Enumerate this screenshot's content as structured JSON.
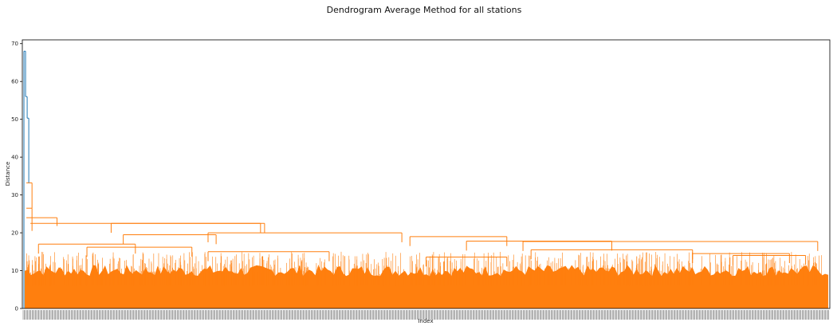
{
  "chart_data": {
    "type": "dendrogram",
    "title": "Dendrogram Average Method for all stations",
    "xlabel": "Index",
    "ylabel": "Distance",
    "ylim": [
      0,
      71
    ],
    "yticks": [
      0,
      10,
      20,
      30,
      40,
      50,
      60,
      70
    ],
    "grid": false,
    "colors": {
      "upper_links": "#1f77b4",
      "clusters": "#ff7f0e"
    },
    "top_merges": [
      68.0,
      56.0,
      50.3,
      33.2,
      26.5,
      24.0,
      22.5
    ],
    "major_merges": [
      {
        "height": 22.5,
        "from": 0.11,
        "to": 0.295
      },
      {
        "height": 20.0,
        "from": 0.23,
        "to": 0.47
      },
      {
        "height": 19.5,
        "from": 0.125,
        "to": 0.24
      },
      {
        "height": 19.0,
        "from": 0.48,
        "to": 0.6
      },
      {
        "height": 17.8,
        "from": 0.55,
        "to": 0.73
      },
      {
        "height": 17.7,
        "from": 0.62,
        "to": 0.985
      },
      {
        "height": 17.0,
        "from": 0.02,
        "to": 0.14
      },
      {
        "height": 16.2,
        "from": 0.08,
        "to": 0.21
      },
      {
        "height": 15.5,
        "from": 0.63,
        "to": 0.83
      },
      {
        "height": 15.0,
        "from": 0.23,
        "to": 0.38
      },
      {
        "height": 14.5,
        "from": 0.83,
        "to": 0.95
      },
      {
        "height": 14.0,
        "from": 0.88,
        "to": 0.97
      },
      {
        "height": 13.6,
        "from": 0.5,
        "to": 0.6
      }
    ]
  }
}
